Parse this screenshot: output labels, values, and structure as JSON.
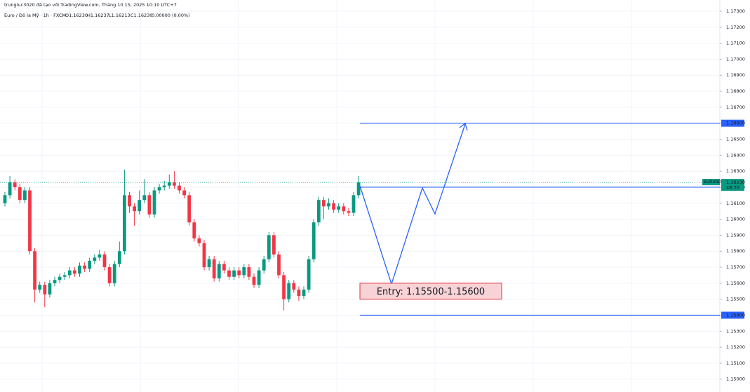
{
  "chart_data": {
    "type": "candlestick",
    "header": "trungluc3020 đã tạo với TradingView.com, Tháng 10 15, 2025 10:10 UTC+7",
    "title": "Euro / Đô la Mỹ · 1h · FXCM",
    "ohlc_text": [
      "O1.16230",
      "H1.16237",
      "L1.16213",
      "C1.16230",
      "0.00000 (0.00%)"
    ],
    "up_color": "#089981",
    "down_color": "#f23645",
    "level_color": "#2962ff",
    "grid": true,
    "ylim": [
      1.1492,
      1.1737
    ],
    "yticks": [
      {
        "value": 1.15,
        "label": "1.15000"
      },
      {
        "value": 1.151,
        "label": "1.15100"
      },
      {
        "value": 1.152,
        "label": "1.15200"
      },
      {
        "value": 1.153,
        "label": "1.15300"
      },
      {
        "value": 1.154,
        "label": "1.15400"
      },
      {
        "value": 1.155,
        "label": "1.15500"
      },
      {
        "value": 1.156,
        "label": "1.15600"
      },
      {
        "value": 1.157,
        "label": "1.15700"
      },
      {
        "value": 1.158,
        "label": "1.15800"
      },
      {
        "value": 1.159,
        "label": "1.15900"
      },
      {
        "value": 1.16,
        "label": "1.16000"
      },
      {
        "value": 1.161,
        "label": "1.16100"
      },
      {
        "value": 1.162,
        "label": "1.16200"
      },
      {
        "value": 1.163,
        "label": "1.16300"
      },
      {
        "value": 1.164,
        "label": "1.16400"
      },
      {
        "value": 1.165,
        "label": "1.16500"
      },
      {
        "value": 1.166,
        "label": "1.16600"
      },
      {
        "value": 1.167,
        "label": "1.16700"
      },
      {
        "value": 1.168,
        "label": "1.16800"
      },
      {
        "value": 1.169,
        "label": "1.16900"
      },
      {
        "value": 1.17,
        "label": "1.17000"
      },
      {
        "value": 1.171,
        "label": "1.17100"
      },
      {
        "value": 1.172,
        "label": "1.17200"
      },
      {
        "value": 1.173,
        "label": "1.17300"
      }
    ],
    "series": [
      {
        "name": "EURUSD",
        "open": [
          1.161,
          1.1615,
          1.1623,
          1.162,
          1.1612,
          1.1618,
          1.158,
          1.1556,
          1.1559,
          1.1553,
          1.156,
          1.1562,
          1.1564,
          1.1565,
          1.1568,
          1.1566,
          1.1571,
          1.1569,
          1.1574,
          1.1576,
          1.1578,
          1.157,
          1.156,
          1.1572,
          1.158,
          1.1615,
          1.1608,
          1.1605,
          1.1612,
          1.1615,
          1.1603,
          1.1618,
          1.162,
          1.1621,
          1.1623,
          1.1621,
          1.1618,
          1.1615,
          1.1598,
          1.1588,
          1.1585,
          1.157,
          1.1575,
          1.1563,
          1.1572,
          1.1568,
          1.1564,
          1.1568,
          1.1565,
          1.157,
          1.1564,
          1.1559,
          1.1568,
          1.1575,
          1.159,
          1.1578,
          1.1565,
          1.155,
          1.156,
          1.1556,
          1.1552,
          1.1556,
          1.1575,
          1.1598,
          1.1612,
          1.1608,
          1.161,
          1.1606,
          1.1608,
          1.1605,
          1.1604,
          1.1615
        ],
        "high": [
          1.1617,
          1.1627,
          1.1625,
          1.1622,
          1.162,
          1.162,
          1.1582,
          1.1561,
          1.1561,
          1.1562,
          1.1564,
          1.1566,
          1.1567,
          1.157,
          1.157,
          1.1573,
          1.1573,
          1.1576,
          1.1578,
          1.1581,
          1.158,
          1.1572,
          1.1574,
          1.1586,
          1.1631,
          1.1617,
          1.161,
          1.1618,
          1.1625,
          1.1617,
          1.162,
          1.1622,
          1.1624,
          1.1628,
          1.163,
          1.1623,
          1.162,
          1.1617,
          1.16,
          1.159,
          1.1587,
          1.1577,
          1.1577,
          1.1574,
          1.1574,
          1.157,
          1.157,
          1.157,
          1.1572,
          1.1572,
          1.1566,
          1.157,
          1.1577,
          1.1592,
          1.1592,
          1.158,
          1.1567,
          1.1562,
          1.1562,
          1.1558,
          1.1558,
          1.1577,
          1.16,
          1.1614,
          1.1614,
          1.1613,
          1.1612,
          1.161,
          1.161,
          1.1607,
          1.1617,
          1.1627
        ],
        "low": [
          1.1608,
          1.1613,
          1.1618,
          1.161,
          1.161,
          1.1578,
          1.1548,
          1.1554,
          1.1545,
          1.1551,
          1.1558,
          1.156,
          1.1562,
          1.1563,
          1.1564,
          1.1564,
          1.1567,
          1.1567,
          1.1572,
          1.1574,
          1.1568,
          1.1558,
          1.1558,
          1.157,
          1.1578,
          1.1604,
          1.1596,
          1.1603,
          1.161,
          1.1601,
          1.1601,
          1.1616,
          1.1618,
          1.1619,
          1.1619,
          1.1616,
          1.1613,
          1.1596,
          1.1586,
          1.1583,
          1.1568,
          1.1568,
          1.1561,
          1.1561,
          1.1566,
          1.1562,
          1.1562,
          1.1563,
          1.1563,
          1.1562,
          1.1557,
          1.1557,
          1.1566,
          1.1573,
          1.1576,
          1.1563,
          1.1543,
          1.1548,
          1.1554,
          1.1549,
          1.155,
          1.1554,
          1.1573,
          1.1596,
          1.16,
          1.1606,
          1.1604,
          1.1604,
          1.1603,
          1.1602,
          1.1602,
          1.1613
        ],
        "close": [
          1.1615,
          1.1623,
          1.162,
          1.1612,
          1.1618,
          1.158,
          1.1556,
          1.1559,
          1.1553,
          1.156,
          1.1562,
          1.1564,
          1.1565,
          1.1568,
          1.1566,
          1.1571,
          1.1569,
          1.1574,
          1.1576,
          1.1578,
          1.157,
          1.156,
          1.1572,
          1.158,
          1.1615,
          1.1608,
          1.1605,
          1.1612,
          1.1615,
          1.1603,
          1.1618,
          1.162,
          1.1621,
          1.1623,
          1.1621,
          1.1618,
          1.1615,
          1.1598,
          1.1588,
          1.1585,
          1.157,
          1.1575,
          1.1563,
          1.1572,
          1.1568,
          1.1564,
          1.1568,
          1.1565,
          1.157,
          1.1564,
          1.1559,
          1.1568,
          1.1575,
          1.159,
          1.1578,
          1.1565,
          1.155,
          1.156,
          1.1556,
          1.1552,
          1.1556,
          1.1575,
          1.1598,
          1.1612,
          1.1608,
          1.161,
          1.1606,
          1.1608,
          1.1605,
          1.1604,
          1.1615,
          1.1623
        ]
      }
    ],
    "last_price": {
      "value": 1.1623,
      "label": "1.16230"
    },
    "countdown": "49:30",
    "levels": [
      {
        "value": 1.166,
        "label": "1.16600"
      },
      {
        "value": 1.162,
        "label": "1.16200"
      },
      {
        "value": 1.154,
        "label": "1.15400"
      }
    ],
    "entry_zone": [
      1.155,
      1.156
    ],
    "entry_label": "Entry: 1.15500-1.15600"
  }
}
